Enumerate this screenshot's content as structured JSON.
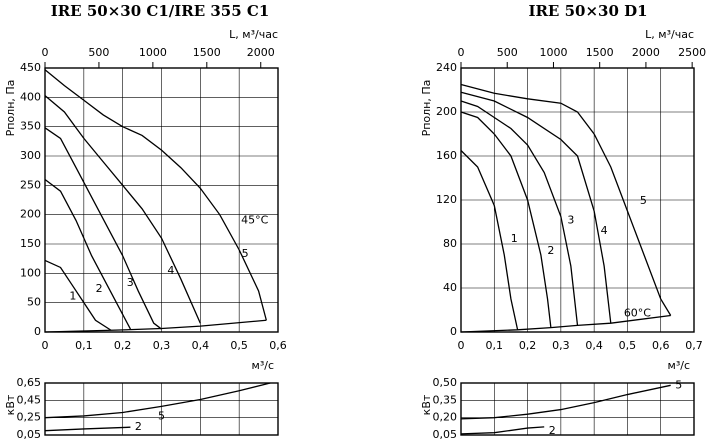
{
  "chart_data": [
    {
      "type": "line",
      "title": "IRE 50×30 C1/IRE 355 C1",
      "xlabel": "м³/с",
      "ylabel": "Pполн, Па",
      "x2label": "L, м³/час",
      "xlim": [
        0,
        0.6
      ],
      "xticks": [
        0,
        {
          "value": 0.1,
          "label": "0,1"
        },
        {
          "value": 0.2,
          "label": "0,2"
        },
        {
          "value": 0.3,
          "label": "0,3"
        },
        {
          "value": 0.4,
          "label": "0,4"
        },
        {
          "value": 0.5,
          "label": "0,5"
        },
        {
          "value": 0.6,
          "label": "0,6"
        }
      ],
      "x2lim": [
        0,
        2160
      ],
      "x2ticks": [
        0,
        500,
        1000,
        1500,
        2000
      ],
      "ylim": [
        0,
        450
      ],
      "yticks": [
        0,
        50,
        100,
        150,
        200,
        250,
        300,
        350,
        400,
        450
      ],
      "grid": true,
      "annotations": [
        "45°C"
      ],
      "series": [
        {
          "name": "1",
          "color": "#000000",
          "x": [
            0,
            0.04,
            0.07,
            0.1,
            0.13,
            0.17
          ],
          "values": [
            122,
            110,
            80,
            50,
            20,
            3
          ]
        },
        {
          "name": "2",
          "color": "#000000",
          "x": [
            0,
            0.04,
            0.08,
            0.12,
            0.16,
            0.2,
            0.22
          ],
          "values": [
            260,
            240,
            190,
            130,
            80,
            30,
            5
          ]
        },
        {
          "name": "3",
          "color": "#000000",
          "x": [
            0,
            0.04,
            0.08,
            0.12,
            0.16,
            0.2,
            0.24,
            0.28,
            0.3
          ],
          "values": [
            348,
            330,
            280,
            230,
            180,
            130,
            70,
            15,
            5
          ]
        },
        {
          "name": "4",
          "color": "#000000",
          "x": [
            0,
            0.05,
            0.1,
            0.15,
            0.2,
            0.25,
            0.3,
            0.35,
            0.4
          ],
          "values": [
            403,
            375,
            330,
            290,
            250,
            210,
            160,
            90,
            15
          ]
        },
        {
          "name": "5",
          "color": "#000000",
          "x": [
            0,
            0.05,
            0.1,
            0.15,
            0.2,
            0.25,
            0.3,
            0.35,
            0.4,
            0.45,
            0.5,
            0.55,
            0.57
          ],
          "values": [
            447,
            420,
            395,
            370,
            350,
            335,
            310,
            280,
            245,
            200,
            140,
            70,
            20
          ]
        },
        {
          "color": "#000000",
          "x": [
            0,
            0.17,
            0.22,
            0.3,
            0.4,
            0.57
          ],
          "values": [
            0,
            3,
            4,
            6,
            10,
            20
          ]
        }
      ]
    },
    {
      "type": "line",
      "ylabel": "кВт",
      "xlim": [
        0,
        0.6
      ],
      "xticks": [
        0,
        0.1,
        0.2,
        0.3,
        0.4,
        0.5,
        0.6
      ],
      "ylim": [
        0.05,
        0.65
      ],
      "yticks": [
        {
          "value": 0.05,
          "label": "0,05"
        },
        {
          "value": 0.25,
          "label": "0,25"
        },
        {
          "value": 0.45,
          "label": "0,45"
        },
        {
          "value": 0.65,
          "label": "0,65"
        }
      ],
      "grid": true,
      "series": [
        {
          "name": "5",
          "color": "#000000",
          "x": [
            0,
            0.1,
            0.2,
            0.3,
            0.4,
            0.5,
            0.58
          ],
          "values": [
            0.25,
            0.27,
            0.31,
            0.38,
            0.46,
            0.56,
            0.65
          ]
        },
        {
          "name": "2",
          "color": "#000000",
          "x": [
            0,
            0.1,
            0.22
          ],
          "values": [
            0.1,
            0.12,
            0.14
          ]
        }
      ]
    },
    {
      "type": "line",
      "title": "IRE 50×30 D1",
      "xlabel": "м³/с",
      "ylabel": "Pполн, Па",
      "x2label": "L, м³/час",
      "xlim": [
        0,
        0.7
      ],
      "xticks": [
        0,
        {
          "value": 0.1,
          "label": "0,1"
        },
        {
          "value": 0.2,
          "label": "0,2"
        },
        {
          "value": 0.3,
          "label": "0,3"
        },
        {
          "value": 0.4,
          "label": "0,4"
        },
        {
          "value": 0.5,
          "label": "0,5"
        },
        {
          "value": 0.6,
          "label": "0,6"
        },
        {
          "value": 0.7,
          "label": "0,7"
        }
      ],
      "x2lim": [
        0,
        2520
      ],
      "x2ticks": [
        0,
        500,
        1000,
        1500,
        2000,
        2500
      ],
      "ylim": [
        0,
        240
      ],
      "yticks": [
        0,
        40,
        80,
        120,
        160,
        200,
        240
      ],
      "grid": true,
      "annotations": [
        "60°C"
      ],
      "series": [
        {
          "name": "1",
          "color": "#000000",
          "x": [
            0,
            0.05,
            0.1,
            0.13,
            0.15,
            0.17
          ],
          "values": [
            165,
            150,
            115,
            70,
            30,
            2
          ]
        },
        {
          "name": "2",
          "color": "#000000",
          "x": [
            0,
            0.05,
            0.1,
            0.15,
            0.2,
            0.24,
            0.26,
            0.27
          ],
          "values": [
            200,
            195,
            180,
            160,
            120,
            70,
            30,
            4
          ]
        },
        {
          "name": "3",
          "color": "#000000",
          "x": [
            0,
            0.05,
            0.1,
            0.15,
            0.2,
            0.25,
            0.3,
            0.33,
            0.35
          ],
          "values": [
            210,
            205,
            195,
            185,
            170,
            145,
            105,
            60,
            6
          ]
        },
        {
          "name": "4",
          "color": "#000000",
          "x": [
            0,
            0.1,
            0.2,
            0.3,
            0.35,
            0.4,
            0.43,
            0.45
          ],
          "values": [
            218,
            210,
            195,
            175,
            160,
            110,
            60,
            8
          ]
        },
        {
          "name": "5",
          "color": "#000000",
          "x": [
            0,
            0.1,
            0.2,
            0.3,
            0.35,
            0.4,
            0.45,
            0.5,
            0.55,
            0.6,
            0.63
          ],
          "values": [
            225,
            217,
            212,
            208,
            200,
            180,
            150,
            110,
            70,
            30,
            15
          ]
        },
        {
          "color": "#000000",
          "x": [
            0,
            0.17,
            0.27,
            0.35,
            0.45,
            0.63
          ],
          "values": [
            0,
            2,
            4,
            6,
            8,
            15
          ]
        }
      ]
    },
    {
      "type": "line",
      "ylabel": "кВт",
      "xlim": [
        0,
        0.7
      ],
      "xticks": [
        0,
        0.1,
        0.2,
        0.3,
        0.4,
        0.5,
        0.6,
        0.7
      ],
      "ylim": [
        0.05,
        0.5
      ],
      "yticks": [
        {
          "value": 0.05,
          "label": "0,05"
        },
        {
          "value": 0.2,
          "label": "0,20"
        },
        {
          "value": 0.35,
          "label": "0,35"
        },
        {
          "value": 0.5,
          "label": "0,50"
        }
      ],
      "grid": true,
      "series": [
        {
          "name": "5",
          "color": "#000000",
          "x": [
            0,
            0.1,
            0.2,
            0.3,
            0.4,
            0.5,
            0.63
          ],
          "values": [
            0.19,
            0.2,
            0.23,
            0.27,
            0.33,
            0.4,
            0.48
          ]
        },
        {
          "name": "2",
          "color": "#000000",
          "x": [
            0,
            0.1,
            0.2,
            0.25
          ],
          "values": [
            0.06,
            0.07,
            0.11,
            0.12
          ]
        }
      ]
    }
  ]
}
